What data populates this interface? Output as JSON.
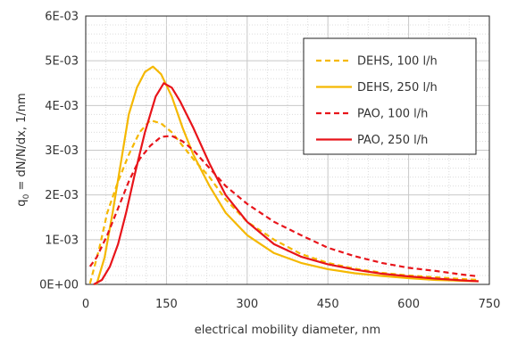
{
  "chart_data": {
    "type": "line",
    "title": "",
    "xlabel": "electrical mobility diameter, nm",
    "ylabel": "q",
    "ylabel_sub": "0",
    "ylabel_rest": " = dN/N/dx, 1/nm",
    "xlim": [
      0,
      750
    ],
    "ylim": [
      0,
      0.006
    ],
    "xticks": [
      "0",
      "150",
      "300",
      "450",
      "600",
      "750"
    ],
    "yticks": [
      "0E+00",
      "1E-03",
      "2E-03",
      "3E-03",
      "4E-03",
      "5E-03",
      "6E-03"
    ],
    "grid": "minor dotted + major solid",
    "legend_position": "top-right",
    "series": [
      {
        "name": "DEHS, 100 l/h",
        "color": "#F5B800",
        "style": "dashed",
        "x": [
          8,
          25,
          40,
          60,
          80,
          100,
          120,
          140,
          160,
          180,
          200,
          230,
          260,
          300,
          350,
          400,
          450,
          500,
          550,
          600,
          650,
          700,
          730
        ],
        "y": [
          2e-05,
          0.0008,
          0.0016,
          0.0023,
          0.0029,
          0.0034,
          0.00367,
          0.0036,
          0.0034,
          0.0031,
          0.0028,
          0.0024,
          0.0019,
          0.0014,
          0.001,
          0.00068,
          0.00048,
          0.00035,
          0.00026,
          0.0002,
          0.00016,
          0.00012,
          0.0001
        ]
      },
      {
        "name": "DEHS, 250 l/h",
        "color": "#F5B800",
        "style": "solid",
        "x": [
          20,
          35,
          50,
          65,
          80,
          95,
          110,
          125,
          140,
          160,
          180,
          200,
          230,
          260,
          300,
          350,
          400,
          450,
          500,
          550,
          600,
          650,
          700,
          730
        ],
        "y": [
          0.0,
          0.0006,
          0.0016,
          0.0027,
          0.0038,
          0.0044,
          0.00475,
          0.00487,
          0.0047,
          0.0042,
          0.0035,
          0.0029,
          0.0022,
          0.0016,
          0.0011,
          0.0007,
          0.00048,
          0.00034,
          0.00025,
          0.00019,
          0.00014,
          0.0001,
          8e-05,
          7e-05
        ]
      },
      {
        "name": "PAO, 100 l/h",
        "color": "#E8141A",
        "style": "dashed",
        "x": [
          8,
          20,
          40,
          60,
          80,
          100,
          120,
          140,
          160,
          180,
          200,
          230,
          260,
          300,
          350,
          400,
          450,
          500,
          550,
          600,
          650,
          700,
          730
        ],
        "y": [
          0.0004,
          0.0006,
          0.0011,
          0.0017,
          0.0023,
          0.0028,
          0.0031,
          0.0033,
          0.00332,
          0.0032,
          0.003,
          0.0026,
          0.0022,
          0.0018,
          0.0014,
          0.0011,
          0.00082,
          0.00063,
          0.00048,
          0.00037,
          0.0003,
          0.00022,
          0.00018
        ]
      },
      {
        "name": "PAO, 250 l/h",
        "color": "#E8141A",
        "style": "solid",
        "x": [
          15,
          30,
          45,
          60,
          75,
          90,
          110,
          130,
          145,
          160,
          175,
          200,
          230,
          260,
          300,
          350,
          400,
          450,
          500,
          550,
          600,
          650,
          700,
          730
        ],
        "y": [
          0.0,
          0.0001,
          0.0004,
          0.0009,
          0.0016,
          0.0024,
          0.0034,
          0.0042,
          0.0045,
          0.0044,
          0.0041,
          0.0035,
          0.0027,
          0.002,
          0.0014,
          0.0009,
          0.00062,
          0.00045,
          0.00033,
          0.00024,
          0.00018,
          0.00013,
          9e-05,
          7e-05
        ]
      }
    ]
  }
}
